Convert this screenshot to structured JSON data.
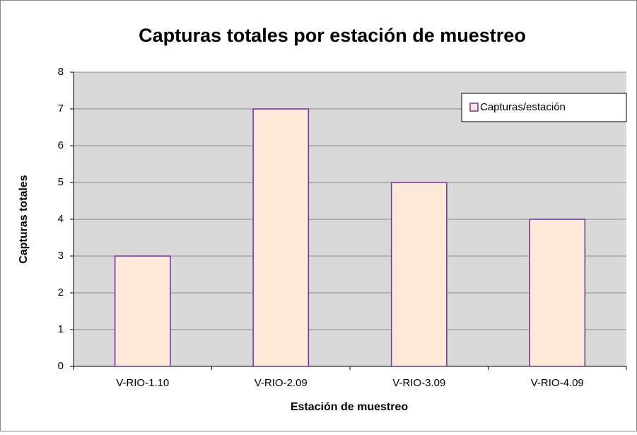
{
  "chart_data": {
    "type": "bar",
    "title": "Capturas totales por estación de muestreo",
    "x_label": "Estación de muestreo",
    "y_label": "Capturas totales",
    "categories": [
      "V-RIO-1.10",
      "V-RIO-2.09",
      "V-RIO-3.09",
      "V-RIO-4.09"
    ],
    "series": [
      {
        "name": "Capturas/estación",
        "color": "#fde9d9",
        "edge_color": "#7030a0",
        "values": [
          3,
          7,
          5,
          4
        ]
      }
    ],
    "ylim": [
      0,
      8
    ],
    "yticks": [
      0,
      1,
      2,
      3,
      4,
      5,
      6,
      7,
      8
    ],
    "grid": true,
    "legend": "upper right"
  }
}
